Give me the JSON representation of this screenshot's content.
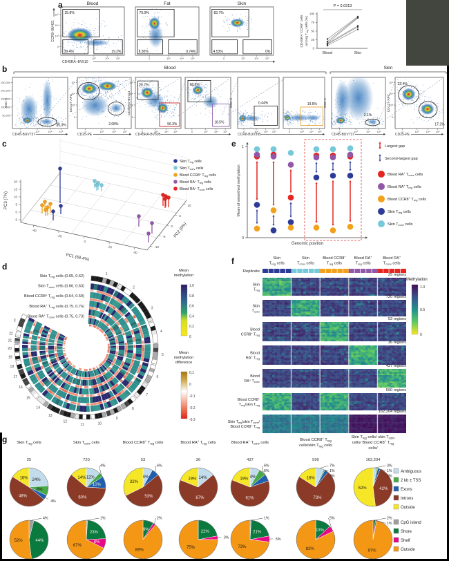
{
  "panels": {
    "a": "a",
    "b": "b",
    "c": "c",
    "d": "d",
    "e": "e",
    "f": "f",
    "g": "g"
  },
  "cell_types": {
    "skin_treg": {
      "label": "Skin T[reg] cells",
      "color": "#2d3b97"
    },
    "skin_tconv": {
      "label": "Skin T[conv] cells",
      "color": "#76c9d9"
    },
    "blood_ccr8_treg": {
      "label": "Blood CCR8{+} T[reg] cells",
      "color": "#f2a11c"
    },
    "blood_ra_treg": {
      "label": "Blood RA{+} T[reg] cells",
      "color": "#9258a8"
    },
    "blood_ra_tconv": {
      "label": "Blood RA{+} T[conv] cells",
      "color": "#e52520"
    }
  },
  "panel_a": {
    "flow_titles": [
      "Blood",
      "Fat",
      "Skin"
    ],
    "flow_gates": [
      [
        "35.8%",
        "39.4%",
        "19.2%"
      ],
      [
        "79.0%",
        "8.30%",
        "0.74%"
      ],
      [
        "83.7%",
        "4.53%",
        "0%"
      ]
    ],
    "y_axis": "CCR8–BV421",
    "x_axis": "CD45RA–BV510",
    "y_ticks": [
      "10⁵",
      "10⁴",
      "10³",
      "0"
    ],
    "x_ticks": [
      "0",
      "10³",
      "10⁴",
      "10⁵"
    ],
    "paired_plot": {
      "p_value": "P = 0.0313",
      "y_label_lines": [
        "CD45RA{−}CCR8{+} cells",
        "among T[reg] cells (%)"
      ],
      "y_ticks": [
        "0",
        "25",
        "50",
        "75",
        "100"
      ],
      "categories": [
        "Blood",
        "Skin"
      ]
    }
  },
  "panel_b": {
    "group_labels": [
      "Blood",
      "Skin"
    ],
    "plots": [
      {
        "y_label": "SSC-A",
        "x_label": "CD45-BUV737",
        "y_ticks": [
          "250,000",
          "200,000",
          "150,000",
          "100,000",
          "50,000"
        ],
        "gates": [
          {
            "label": "35.3%"
          }
        ]
      },
      {
        "y_label": "CD127-APC",
        "x_label": "CD25-PE",
        "gates": [
          {
            "label": ""
          },
          {
            "label": "2.08%"
          }
        ]
      },
      {
        "y_label": "CD45RO-BV421",
        "x_label": "CD45RA-BV605",
        "gates": [
          {
            "label": "26.7%"
          },
          {
            "label": "56.3%"
          }
        ]
      },
      {
        "y_label": "",
        "x_label": "",
        "gates": [
          {
            "label": "68.6%"
          },
          {
            "label": "18.5%"
          }
        ]
      },
      {
        "y_label": "SSC-A",
        "x_label": "CCR8-BUV395",
        "gates": [
          {
            "label": "0.44%"
          }
        ]
      },
      {
        "y_label": "",
        "x_label": "",
        "gates": [
          {
            "label": "19.5%"
          }
        ]
      },
      {
        "y_label": "SSC-A",
        "x_label": "CD45-BUV737",
        "gates": [
          {
            "label": "2.1%"
          }
        ]
      },
      {
        "y_label": "CD127-APC",
        "x_label": "CD25-PE",
        "gates": [
          {
            "label": "22.4%"
          },
          {
            "label": "17.2%"
          }
        ]
      }
    ],
    "x_ticks": [
      "0",
      "10³",
      "10⁴",
      "10⁵"
    ]
  },
  "panel_c": {
    "x_label": "PC1 (68.4%)",
    "y_right_label": "PC2 (9%)",
    "y_left_label": "PC3 (7%)",
    "x_ticks": [
      "-40",
      "-20",
      "0",
      "20",
      "40"
    ],
    "right_ticks": [
      "-10",
      "-5",
      "0",
      "5",
      "10"
    ],
    "left_ticks": [
      "-5",
      "0",
      "5",
      "10",
      "15",
      "20"
    ],
    "legend_order": [
      "skin_treg",
      "skin_tconv",
      "blood_ccr8_treg",
      "blood_ra_treg",
      "blood_ra_tconv"
    ]
  },
  "panel_e": {
    "y_label": "Mean of smoothed methylation",
    "x_label": "Genomic position",
    "y_ticks": [
      "1",
      "0"
    ],
    "legend_arrows": [
      {
        "label": "Largest gap",
        "color": "#e52520"
      },
      {
        "label": "Second-largest gap",
        "color": "#2d3b97"
      }
    ],
    "legend_dots": [
      "blood_ra_tconv",
      "blood_ra_treg",
      "blood_ccr8_treg",
      "skin_treg",
      "skin_tconv"
    ]
  },
  "panel_d": {
    "ring_labels": [
      {
        "label": "Skin T[reg] cells",
        "values": "(0.65, 0.62)"
      },
      {
        "label": "Skin T[conv] cells",
        "values": "(0.66, 0.63)"
      },
      {
        "label": "Blood CCR8{+} T[reg] cells",
        "values": "(0.64, 0.59)"
      },
      {
        "label": "Blood RA{+} T[reg] cells",
        "values": "(0.75, 0.76)"
      },
      {
        "label": "Blood RA{+} T[conv] cells",
        "values": "(0.75, 0.73)"
      }
    ],
    "chromosomes": [
      "1",
      "2",
      "3",
      "4",
      "5",
      "6",
      "7",
      "8",
      "9",
      "10",
      "11",
      "12",
      "13",
      "14",
      "15",
      "16",
      "17",
      "18",
      "19",
      "20",
      "21",
      "22",
      "X"
    ],
    "colorbar_methylation": {
      "title_lines": [
        "Mean",
        "methylation"
      ],
      "ticks": [
        "1.0",
        "0.8",
        "0.6",
        "0.4",
        "0.2",
        "0"
      ]
    },
    "colorbar_difference": {
      "title_lines": [
        "Mean",
        "methylation",
        "difference"
      ],
      "ticks": [
        "0.1",
        "0",
        "-0.1",
        "-0.2",
        "-0.3"
      ]
    }
  },
  "panel_f": {
    "replicate_label": "Replicate",
    "column_headers": [
      [
        "Skin",
        "T[reg] cells"
      ],
      [
        "Skin",
        "T[conv] cells"
      ],
      [
        "Blood CCR8{+}",
        "T[reg] cells"
      ],
      [
        "Blood RA{+}",
        "T[reg] cells"
      ],
      [
        "Blood RA{+}",
        "T[conv] cells"
      ]
    ],
    "replicate_colors": [
      "#2d3b97",
      "#76c9d9",
      "#f2a11c",
      "#9258a8",
      "#e52520"
    ],
    "rows": [
      {
        "label_lines": [
          "Skin",
          "T[reg]"
        ],
        "regions": "25 regions",
        "highlight": [
          0
        ],
        "split_dark": false
      },
      {
        "label_lines": [
          "Skin",
          "T[conv]"
        ],
        "regions": "720 regions",
        "highlight": [
          1
        ],
        "split_dark": false
      },
      {
        "label_lines": [
          "Blood",
          "CCR8{+} T[reg]"
        ],
        "regions": "53 regions",
        "highlight": [
          2
        ],
        "split_dark": false
      },
      {
        "label_lines": [
          "Blood",
          "RA{+} T[reg]"
        ],
        "regions": "36 regions",
        "highlight": [
          3
        ],
        "split_dark": false
      },
      {
        "label_lines": [
          "Blood",
          "RA{+} T[conv]"
        ],
        "regions": "437 regions",
        "highlight": [
          4
        ],
        "split_dark": false
      },
      {
        "label_lines": [
          "Blood CCR8{+}",
          "T[reg]/skin T[reg]"
        ],
        "regions": "590 regions",
        "highlight": [
          0,
          2
        ],
        "split_dark": false
      },
      {
        "label_lines": [
          "Skin T[reg]/skin T[conv]/",
          "Blood CCR8{+} T[reg]"
        ],
        "regions": "162,204 regions",
        "highlight": [],
        "split_dark": true
      }
    ],
    "colorbar": {
      "title": "Methylation",
      "ticks": [
        "1.0",
        "0.5",
        "0"
      ]
    }
  },
  "panel_g": {
    "column_headers": [
      [
        "Skin T[reg] cells"
      ],
      [
        "Skin T[conv] cells"
      ],
      [
        "Blood CCR8{+} T[reg] cells"
      ],
      [
        "Blood RA{+} T[reg] cells"
      ],
      [
        "Blood RA{+} T[conv] cells"
      ],
      [
        "Blood CCR8{+} T[reg]",
        "cells/skin T[reg] cells"
      ],
      [
        "Skin T[reg] cells/ skin T[conv]",
        "cells/ Blood CCR8{+} T[reg]",
        "cells/"
      ]
    ],
    "counts": [
      "25",
      "720",
      "53",
      "36",
      "437",
      "590",
      "162,204"
    ],
    "legend_top": [
      {
        "label": "Ambiguous",
        "color": "#c2dcec"
      },
      {
        "label": "2 kb ± TSS",
        "color": "#48a949"
      },
      {
        "label": "Exons",
        "color": "#1f5fae"
      },
      {
        "label": "Introns",
        "color": "#8c3a28"
      },
      {
        "label": "Outside",
        "color": "#f6e628"
      }
    ],
    "legend_bottom": [
      {
        "label": "CpG island",
        "color": "#9e9e9e"
      },
      {
        "label": "Shore",
        "color": "#0b7a3e"
      },
      {
        "label": "Shelf",
        "color": "#e80786"
      },
      {
        "label": "Outside",
        "color": "#f49715"
      }
    ]
  },
  "chart_data": [
    {
      "id": "a_paired_lines",
      "type": "line",
      "title": "P = 0.0313",
      "categories": [
        "Blood",
        "Skin"
      ],
      "ylabel": "CD45RA−CCR8+ cells among Treg cells (%)",
      "ylim": [
        0,
        100
      ],
      "series": [
        [
          8,
          55
        ],
        [
          12,
          62
        ],
        [
          14,
          65
        ],
        [
          15,
          88
        ],
        [
          20,
          90
        ],
        [
          27,
          92
        ]
      ]
    },
    {
      "id": "c_pca",
      "type": "scatter",
      "xlabel": "PC1 (68.4%)",
      "ylabel": "PC2 (9%)",
      "zlabel": "PC3 (7%)",
      "xlim": [
        -40,
        60
      ],
      "clusters": [
        {
          "name": "Blood CCR8+ Treg cells",
          "approx_pc1": -38
        },
        {
          "name": "Skin Treg cells",
          "approx_pc1": -27
        },
        {
          "name": "Skin Tconv cells",
          "approx_pc1": -3
        },
        {
          "name": "Blood RA+ Treg cells",
          "approx_pc1": 30
        },
        {
          "name": "Blood RA+ Tconv cells",
          "approx_pc1": 55
        }
      ]
    },
    {
      "id": "e_schematic",
      "type": "scatter",
      "ylabel": "Mean of smoothed methylation",
      "xlabel": "Genomic position",
      "ylim": [
        0,
        1
      ],
      "series": [
        {
          "name": "Skin T[conv] cells",
          "color": "#76c9d9",
          "values": [
            0.97,
            0.97,
            0.93,
            0.97,
            0.97,
            0.98
          ]
        },
        {
          "name": "Blood RA{+} T[conv] cells",
          "color": "#e52520",
          "values": [
            0.89,
            0.91,
            0.44,
            0.9,
            0.9,
            0.89
          ]
        },
        {
          "name": "Blood RA{+} T[reg] cells",
          "color": "#9258a8",
          "values": [
            0.91,
            0.89,
            0.8,
            0.88,
            0.88,
            0.91
          ]
        },
        {
          "name": "Skin T[reg] cells",
          "color": "#2d3b97",
          "values": [
            0.36,
            0.08,
            0.17,
            0.66,
            0.68,
            0.68
          ]
        },
        {
          "name": "Blood CCR8{+} T[reg] cells",
          "color": "#f2a11c",
          "values": [
            0.1,
            0.3,
            0.11,
            0.11,
            0.08,
            0.12
          ]
        }
      ]
    },
    {
      "id": "g_genomic_annotation_pies",
      "type": "pie",
      "slices": [
        "Ambiguous",
        "2 kb ± TSS",
        "Exons",
        "Introns",
        "Outside"
      ],
      "pies": [
        {
          "name": "Skin Treg cells",
          "n": 25,
          "values": [
            24,
            8,
            4,
            48,
            16
          ]
        },
        {
          "name": "Skin Tconv cells",
          "n": 720,
          "values": [
            12,
            4,
            10,
            60,
            14
          ]
        },
        {
          "name": "Blood CCR8+ Treg cells",
          "n": 53,
          "values": [
            8,
            0,
            6,
            53,
            32
          ]
        },
        {
          "name": "Blood RA+ Treg cells",
          "n": 36,
          "values": [
            14,
            0,
            0,
            67,
            19
          ]
        },
        {
          "name": "Blood RA+ Tconv cells",
          "n": 437,
          "values": [
            8,
            6,
            6,
            61,
            19
          ]
        },
        {
          "name": "Blood CCR8+ Treg cells/skin Treg cells",
          "n": 590,
          "values": [
            7,
            1,
            3,
            73,
            16
          ]
        },
        {
          "name": "Skin Treg cells/skin Tconv cells/Blood CCR8+ Treg cells",
          "n": 162204,
          "values": [
            3,
            1,
            2,
            42,
            52
          ]
        }
      ]
    },
    {
      "id": "g_cpg_context_pies",
      "type": "pie",
      "slices": [
        "CpG island",
        "Shore",
        "Shelf",
        "Outside"
      ],
      "pies": [
        {
          "name": "Skin Treg cells",
          "values": [
            4,
            44,
            0,
            52
          ]
        },
        {
          "name": "Skin Tconv cells",
          "values": [
            1,
            23,
            8,
            67
          ]
        },
        {
          "name": "Blood CCR8+ Treg cells",
          "values": [
            0,
            9,
            2,
            89
          ]
        },
        {
          "name": "Blood RA+ Treg cells",
          "values": [
            0,
            22,
            3,
            75
          ]
        },
        {
          "name": "Blood RA+ Tconv cells",
          "values": [
            1,
            21,
            5,
            73
          ]
        },
        {
          "name": "Blood CCR8+ Treg cells/skin Treg cells",
          "values": [
            0,
            13,
            5,
            82
          ]
        },
        {
          "name": "Skin Treg cells/skin Tconv cells/Blood CCR8+ Treg cells",
          "values": [
            0,
            2,
            1,
            97
          ]
        }
      ]
    }
  ]
}
